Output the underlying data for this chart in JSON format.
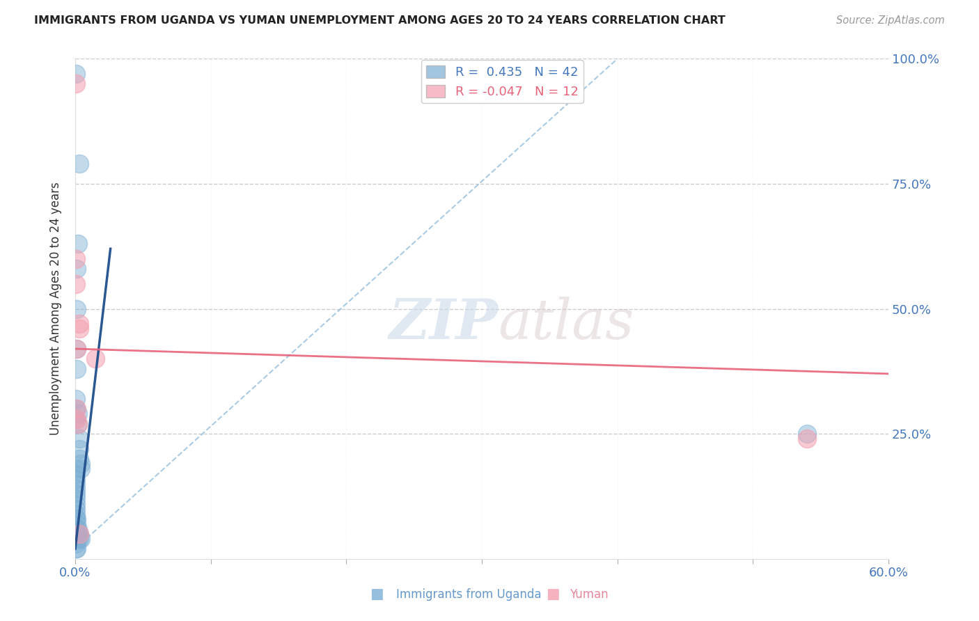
{
  "title": "IMMIGRANTS FROM UGANDA VS YUMAN UNEMPLOYMENT AMONG AGES 20 TO 24 YEARS CORRELATION CHART",
  "source": "Source: ZipAtlas.com",
  "xlabel_blue": "Immigrants from Uganda",
  "xlabel_pink": "Yuman",
  "ylabel": "Unemployment Among Ages 20 to 24 years",
  "xmin": 0.0,
  "xmax": 0.6,
  "ymin": 0.0,
  "ymax": 1.0,
  "x_ticks": [
    0.0,
    0.1,
    0.2,
    0.3,
    0.4,
    0.5,
    0.6
  ],
  "y_ticks": [
    0.0,
    0.25,
    0.5,
    0.75,
    1.0
  ],
  "legend_blue_r": "0.435",
  "legend_blue_n": "42",
  "legend_pink_r": "-0.047",
  "legend_pink_n": "12",
  "blue_color": "#7BAFD4",
  "pink_color": "#F4A0B0",
  "trendline_blue_color": "#1F4E8C",
  "trendline_pink_color": "#E8637A",
  "dashed_line_color": "#7BAFD4",
  "watermark_zip": "ZIP",
  "watermark_atlas": "atlas",
  "blue_scatter": [
    [
      0.0005,
      0.97
    ],
    [
      0.003,
      0.79
    ],
    [
      0.002,
      0.63
    ],
    [
      0.001,
      0.58
    ],
    [
      0.001,
      0.5
    ],
    [
      0.001,
      0.42
    ],
    [
      0.001,
      0.38
    ],
    [
      0.0005,
      0.32
    ],
    [
      0.0005,
      0.3
    ],
    [
      0.0005,
      0.28
    ],
    [
      0.002,
      0.29
    ],
    [
      0.002,
      0.27
    ],
    [
      0.003,
      0.24
    ],
    [
      0.003,
      0.22
    ],
    [
      0.003,
      0.2
    ],
    [
      0.004,
      0.19
    ],
    [
      0.004,
      0.18
    ],
    [
      0.0005,
      0.18
    ],
    [
      0.0005,
      0.17
    ],
    [
      0.0005,
      0.16
    ],
    [
      0.0005,
      0.15
    ],
    [
      0.0005,
      0.14
    ],
    [
      0.0005,
      0.13
    ],
    [
      0.0005,
      0.12
    ],
    [
      0.0005,
      0.11
    ],
    [
      0.0005,
      0.1
    ],
    [
      0.0005,
      0.09
    ],
    [
      0.0005,
      0.08
    ],
    [
      0.001,
      0.08
    ],
    [
      0.001,
      0.07
    ],
    [
      0.001,
      0.06
    ],
    [
      0.001,
      0.05
    ],
    [
      0.002,
      0.06
    ],
    [
      0.002,
      0.05
    ],
    [
      0.002,
      0.04
    ],
    [
      0.003,
      0.05
    ],
    [
      0.003,
      0.04
    ],
    [
      0.004,
      0.04
    ],
    [
      0.0005,
      0.03
    ],
    [
      0.0005,
      0.02
    ],
    [
      0.001,
      0.02
    ],
    [
      0.54,
      0.25
    ]
  ],
  "pink_scatter": [
    [
      0.0005,
      0.95
    ],
    [
      0.0005,
      0.6
    ],
    [
      0.0005,
      0.55
    ],
    [
      0.001,
      0.42
    ],
    [
      0.001,
      0.3
    ],
    [
      0.001,
      0.28
    ],
    [
      0.002,
      0.27
    ],
    [
      0.003,
      0.47
    ],
    [
      0.003,
      0.46
    ],
    [
      0.015,
      0.4
    ],
    [
      0.003,
      0.05
    ],
    [
      0.54,
      0.24
    ]
  ],
  "blue_trend_x": [
    0.0,
    0.026
  ],
  "blue_trend_y": [
    0.02,
    0.62
  ],
  "pink_trend_x": [
    0.0,
    0.6
  ],
  "pink_trend_y": [
    0.42,
    0.37
  ],
  "dashed_trend_x": [
    0.0,
    0.4
  ],
  "dashed_trend_y": [
    0.02,
    1.0
  ]
}
